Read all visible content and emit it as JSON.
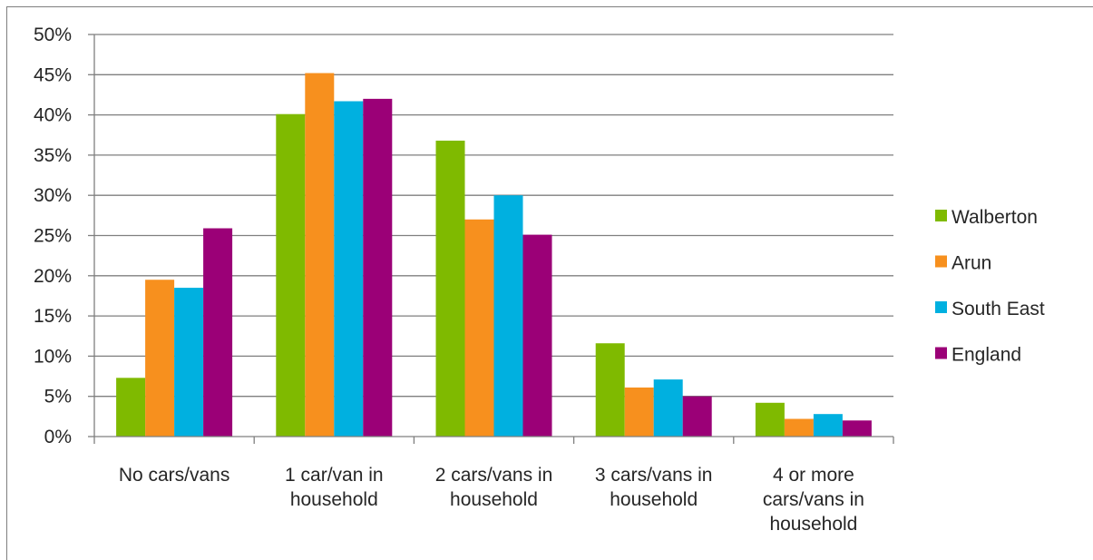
{
  "chart_data": {
    "type": "bar",
    "title": "",
    "xlabel": "",
    "ylabel": "",
    "ylim": [
      0,
      50
    ],
    "y_tick_labels": [
      "0%",
      "5%",
      "10%",
      "15%",
      "20%",
      "25%",
      "30%",
      "35%",
      "40%",
      "45%",
      "50%"
    ],
    "grid": true,
    "legend_position": "right",
    "categories": [
      [
        "No cars/vans"
      ],
      [
        "1 car/van in",
        "household"
      ],
      [
        "2 cars/vans in",
        "household"
      ],
      [
        "3 cars/vans in",
        "household"
      ],
      [
        "4 or more",
        "cars/vans in",
        "household"
      ]
    ],
    "series": [
      {
        "name": "Walberton",
        "color": "#7fba00",
        "values": [
          7.3,
          40.1,
          36.8,
          11.6,
          4.2
        ]
      },
      {
        "name": "Arun",
        "color": "#f7901e",
        "values": [
          19.5,
          45.2,
          27.0,
          6.1,
          2.2
        ]
      },
      {
        "name": "South East",
        "color": "#00b0e0",
        "values": [
          18.5,
          41.7,
          30.0,
          7.1,
          2.8
        ]
      },
      {
        "name": "England",
        "color": "#9b0077",
        "values": [
          25.9,
          42.0,
          25.1,
          5.0,
          2.0
        ]
      }
    ]
  }
}
